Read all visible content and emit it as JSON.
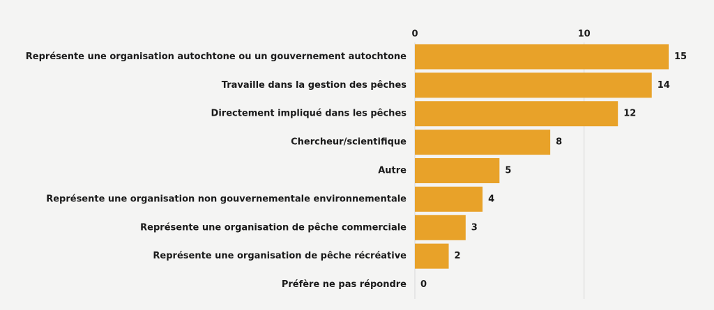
{
  "chart_data": {
    "type": "barh",
    "categories": [
      "Représente une organisation autochtone ou un gouvernement autochtone",
      "Travaille dans la gestion des pêches",
      "Directement impliqué dans les pêches",
      "Chercheur/scientifique",
      "Autre",
      "Représente une organisation non gouvernementale environnementale",
      "Représente une organisation de pêche commerciale",
      "Représente une organisation de pêche récréative",
      "Préfère ne pas répondre"
    ],
    "values": [
      15,
      14,
      12,
      8,
      5,
      4,
      3,
      2,
      0
    ],
    "color": "#e8a229",
    "xlim": [
      0,
      15
    ],
    "xticks": [
      0,
      10
    ],
    "grid": true
  }
}
